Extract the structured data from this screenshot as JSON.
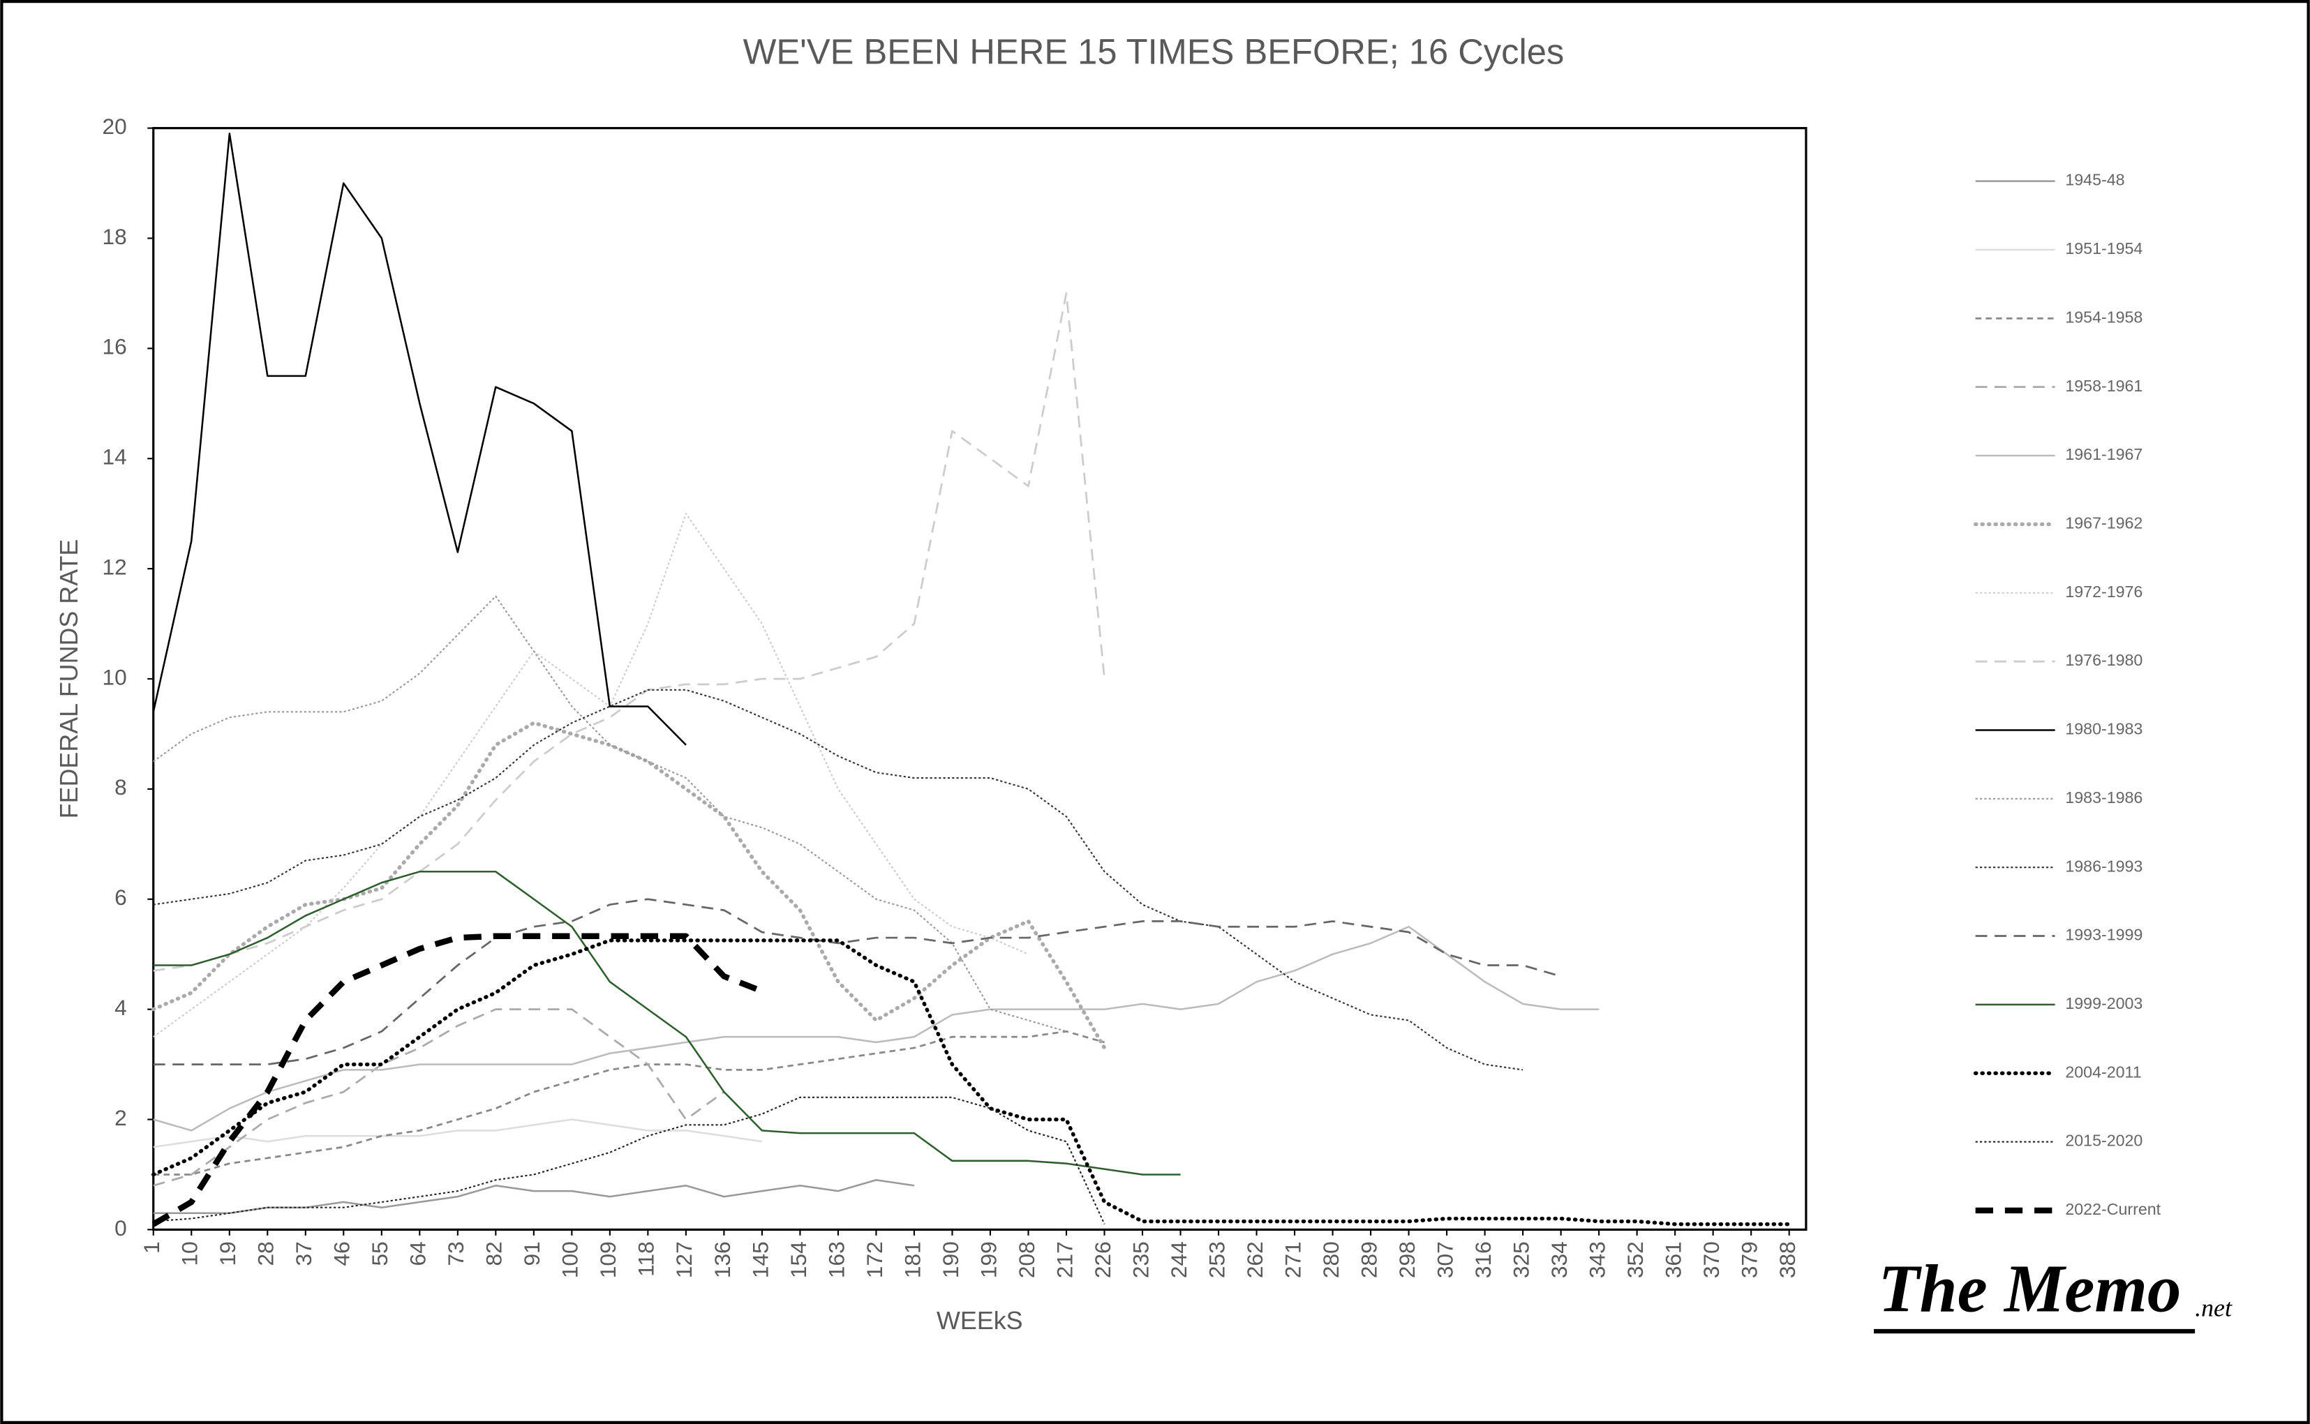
{
  "chart_data": {
    "type": "line",
    "title": "WE'VE BEEN HERE 15 TIMES BEFORE; 16 Cycles",
    "x_label": "WEEkS",
    "y_label": "FEDERAL FUNDS RATE",
    "logo": {
      "name": "The Memo",
      "suffix": ".net"
    },
    "x": [
      1,
      10,
      19,
      28,
      37,
      46,
      55,
      64,
      73,
      82,
      91,
      100,
      109,
      118,
      127,
      136,
      145,
      154,
      163,
      172,
      181,
      190,
      199,
      208,
      217,
      226,
      235,
      244,
      253,
      262,
      271,
      280,
      289,
      298,
      307,
      316,
      325,
      334,
      343,
      352,
      361,
      370,
      379,
      388
    ],
    "xlim": [
      1,
      392
    ],
    "xticks": [
      1,
      10,
      19,
      28,
      37,
      46,
      55,
      64,
      73,
      82,
      91,
      100,
      109,
      118,
      127,
      136,
      145,
      154,
      163,
      172,
      181,
      190,
      199,
      208,
      217,
      226,
      235,
      244,
      253,
      262,
      271,
      280,
      289,
      298,
      307,
      316,
      325,
      334,
      343,
      352,
      361,
      370,
      379,
      388
    ],
    "ylim": [
      0,
      20
    ],
    "yticks": [
      0,
      2,
      4,
      6,
      8,
      10,
      12,
      14,
      16,
      18,
      20
    ],
    "grid": false,
    "legend": "right",
    "series": [
      {
        "name": "1945-48",
        "color": "#999999",
        "style": "solid",
        "values": [
          0.3,
          0.3,
          0.3,
          0.4,
          0.4,
          0.5,
          0.4,
          0.5,
          0.6,
          0.8,
          0.7,
          0.7,
          0.6,
          0.7,
          0.8,
          0.6,
          0.7,
          0.8,
          0.7,
          0.9,
          0.8,
          null,
          null,
          null,
          null,
          null,
          null,
          null,
          null,
          null,
          null,
          null,
          null,
          null,
          null,
          null,
          null,
          null,
          null,
          null,
          null,
          null,
          null,
          null
        ]
      },
      {
        "name": "1951-1954",
        "color": "#dddddd",
        "style": "solid",
        "values": [
          1.5,
          1.6,
          1.7,
          1.6,
          1.7,
          1.7,
          1.7,
          1.7,
          1.8,
          1.8,
          1.9,
          2.0,
          1.9,
          1.8,
          1.8,
          1.7,
          1.6,
          null,
          null,
          null,
          null,
          null,
          null,
          null,
          null,
          null,
          null,
          null,
          null,
          null,
          null,
          null,
          null,
          null,
          null,
          null,
          null,
          null,
          null,
          null,
          null,
          null,
          null,
          null
        ]
      },
      {
        "name": "1954-1958",
        "color": "#888888",
        "style": "dashed",
        "values": [
          1.0,
          1.0,
          1.2,
          1.3,
          1.4,
          1.5,
          1.7,
          1.8,
          2.0,
          2.2,
          2.5,
          2.7,
          2.9,
          3.0,
          3.0,
          2.9,
          2.9,
          3.0,
          3.1,
          3.2,
          3.3,
          3.5,
          3.5,
          3.5,
          3.6,
          3.4,
          null,
          null,
          null,
          null,
          null,
          null,
          null,
          null,
          null,
          null,
          null,
          null,
          null,
          null,
          null,
          null,
          null,
          null
        ]
      },
      {
        "name": "1958-1961",
        "color": "#aaaaaa",
        "style": "long-dash",
        "values": [
          0.8,
          1.0,
          1.5,
          2.0,
          2.3,
          2.5,
          3.0,
          3.3,
          3.7,
          4.0,
          4.0,
          4.0,
          3.5,
          3.0,
          2.0,
          2.5,
          null,
          null,
          null,
          null,
          null,
          null,
          null,
          null,
          null,
          null,
          null,
          null,
          null,
          null,
          null,
          null,
          null,
          null,
          null,
          null,
          null,
          null,
          null,
          null,
          null,
          null,
          null,
          null
        ]
      },
      {
        "name": "1961-1967",
        "color": "#bbbbbb",
        "style": "solid",
        "values": [
          2.0,
          1.8,
          2.2,
          2.5,
          2.7,
          2.9,
          2.9,
          3.0,
          3.0,
          3.0,
          3.0,
          3.0,
          3.2,
          3.3,
          3.4,
          3.5,
          3.5,
          3.5,
          3.5,
          3.4,
          3.5,
          3.9,
          4.0,
          4.0,
          4.0,
          4.0,
          4.1,
          4.0,
          4.1,
          4.5,
          4.7,
          5.0,
          5.2,
          5.5,
          5.0,
          4.5,
          4.1,
          4.0,
          4.0,
          null,
          null,
          null,
          null,
          null
        ]
      },
      {
        "name": "1967-1962",
        "color": "#aaaaaa",
        "style": "bold-dotted",
        "values": [
          4.0,
          4.3,
          5.0,
          5.5,
          5.9,
          6.0,
          6.2,
          7.0,
          7.7,
          8.8,
          9.2,
          9.0,
          8.8,
          8.5,
          8.0,
          7.5,
          6.5,
          5.8,
          4.5,
          3.8,
          4.2,
          4.8,
          5.3,
          5.6,
          4.5,
          3.3,
          null,
          null,
          null,
          null,
          null,
          null,
          null,
          null,
          null,
          null,
          null,
          null,
          null,
          null,
          null,
          null,
          null,
          null
        ]
      },
      {
        "name": "1972-1976",
        "color": "#cccccc",
        "style": "dotted",
        "values": [
          3.5,
          4.0,
          4.5,
          5.0,
          5.5,
          6.2,
          7.0,
          7.5,
          8.5,
          9.5,
          10.5,
          10.0,
          9.5,
          11.0,
          13.0,
          12.0,
          11.0,
          9.5,
          8.0,
          7.0,
          6.0,
          5.5,
          5.3,
          5.0,
          null,
          null,
          null,
          null,
          null,
          null,
          null,
          null,
          null,
          null,
          null,
          null,
          null,
          null,
          null,
          null,
          null,
          null,
          null,
          null
        ]
      },
      {
        "name": "1976-1980",
        "color": "#cccccc",
        "style": "long-dash",
        "values": [
          4.7,
          4.8,
          5.0,
          5.2,
          5.5,
          5.8,
          6.0,
          6.5,
          7.0,
          7.8,
          8.5,
          9.0,
          9.3,
          9.8,
          9.9,
          9.9,
          10.0,
          10.0,
          10.2,
          10.4,
          11.0,
          14.5,
          14.0,
          13.5,
          17.0,
          10.0,
          null,
          null,
          null,
          null,
          null,
          null,
          null,
          null,
          null,
          null,
          null,
          null,
          null,
          null,
          null,
          null,
          null,
          null
        ]
      },
      {
        "name": "1980-1983",
        "color": "#000000",
        "style": "solid",
        "values": [
          9.4,
          12.5,
          19.9,
          15.5,
          15.5,
          19.0,
          18.0,
          15.0,
          12.3,
          15.3,
          15.0,
          14.5,
          9.5,
          9.5,
          8.8,
          null,
          null,
          null,
          null,
          null,
          null,
          null,
          null,
          null,
          null,
          null,
          null,
          null,
          null,
          null,
          null,
          null,
          null,
          null,
          null,
          null,
          null,
          null,
          null,
          null,
          null,
          null,
          null,
          null
        ]
      },
      {
        "name": "1983-1986",
        "color": "#999999",
        "style": "dotted",
        "values": [
          8.5,
          9.0,
          9.3,
          9.4,
          9.4,
          9.4,
          9.6,
          10.1,
          10.8,
          11.5,
          10.5,
          9.5,
          8.8,
          8.5,
          8.2,
          7.5,
          7.3,
          7.0,
          6.5,
          6.0,
          5.8,
          5.2,
          4.0,
          3.8,
          3.6,
          null,
          null,
          null,
          null,
          null,
          null,
          null,
          null,
          null,
          null,
          null,
          null,
          null,
          null,
          null,
          null,
          null,
          null,
          null
        ]
      },
      {
        "name": "1986-1993",
        "color": "#333333",
        "style": "dotted",
        "values": [
          5.9,
          6.0,
          6.1,
          6.3,
          6.7,
          6.8,
          7.0,
          7.5,
          7.8,
          8.2,
          8.8,
          9.2,
          9.5,
          9.8,
          9.8,
          9.6,
          9.3,
          9.0,
          8.6,
          8.3,
          8.2,
          8.2,
          8.2,
          8.0,
          7.5,
          6.5,
          5.9,
          5.6,
          5.5,
          5.0,
          4.5,
          4.2,
          3.9,
          3.8,
          3.3,
          3.0,
          2.9,
          null,
          null,
          null,
          null,
          null,
          null,
          null
        ]
      },
      {
        "name": "1993-1999",
        "color": "#666666",
        "style": "long-dash",
        "values": [
          3.0,
          3.0,
          3.0,
          3.0,
          3.1,
          3.3,
          3.6,
          4.2,
          4.8,
          5.3,
          5.5,
          5.6,
          5.9,
          6.0,
          5.9,
          5.8,
          5.4,
          5.3,
          5.2,
          5.3,
          5.3,
          5.2,
          5.3,
          5.3,
          5.4,
          5.5,
          5.6,
          5.6,
          5.5,
          5.5,
          5.5,
          5.6,
          5.5,
          5.4,
          5.0,
          4.8,
          4.8,
          4.6,
          null,
          null,
          null,
          null,
          null,
          null
        ]
      },
      {
        "name": "1999-2003",
        "color": "#2e5e2e",
        "style": "solid",
        "values": [
          4.8,
          4.8,
          5.0,
          5.3,
          5.7,
          6.0,
          6.3,
          6.5,
          6.5,
          6.5,
          6.0,
          5.5,
          4.5,
          4.0,
          3.5,
          2.5,
          1.8,
          1.75,
          1.75,
          1.75,
          1.75,
          1.25,
          1.25,
          1.25,
          1.2,
          1.1,
          1.0,
          1.0,
          null,
          null,
          null,
          null,
          null,
          null,
          null,
          null,
          null,
          null,
          null,
          null,
          null,
          null,
          null,
          null
        ]
      },
      {
        "name": "2004-2011",
        "color": "#000000",
        "style": "bold-dotted",
        "values": [
          1.0,
          1.3,
          1.8,
          2.3,
          2.5,
          3.0,
          3.0,
          3.5,
          4.0,
          4.3,
          4.8,
          5.0,
          5.25,
          5.25,
          5.25,
          5.25,
          5.25,
          5.25,
          5.25,
          4.8,
          4.5,
          3.0,
          2.2,
          2.0,
          2.0,
          0.5,
          0.15,
          0.15,
          0.15,
          0.15,
          0.15,
          0.15,
          0.15,
          0.15,
          0.2,
          0.2,
          0.2,
          0.2,
          0.15,
          0.15,
          0.1,
          0.1,
          0.1,
          0.1
        ]
      },
      {
        "name": "2015-2020",
        "color": "#222222",
        "style": "dotted",
        "values": [
          0.15,
          0.2,
          0.3,
          0.4,
          0.4,
          0.4,
          0.5,
          0.6,
          0.7,
          0.9,
          1.0,
          1.2,
          1.4,
          1.7,
          1.9,
          1.9,
          2.1,
          2.4,
          2.4,
          2.4,
          2.4,
          2.4,
          2.2,
          1.8,
          1.6,
          0.1,
          null,
          null,
          null,
          null,
          null,
          null,
          null,
          null,
          null,
          null,
          null,
          null,
          null,
          null,
          null,
          null,
          null,
          null
        ]
      },
      {
        "name": "2022-Current",
        "color": "#000000",
        "style": "bold-dashed",
        "values": [
          0.1,
          0.5,
          1.6,
          2.5,
          3.8,
          4.5,
          4.8,
          5.1,
          5.3,
          5.33,
          5.33,
          5.33,
          5.33,
          5.33,
          5.33,
          4.6,
          4.33,
          null,
          null,
          null,
          null,
          null,
          null,
          null,
          null,
          null,
          null,
          null,
          null,
          null,
          null,
          null,
          null,
          null,
          null,
          null,
          null,
          null,
          null,
          null,
          null,
          null,
          null,
          null
        ]
      }
    ]
  }
}
